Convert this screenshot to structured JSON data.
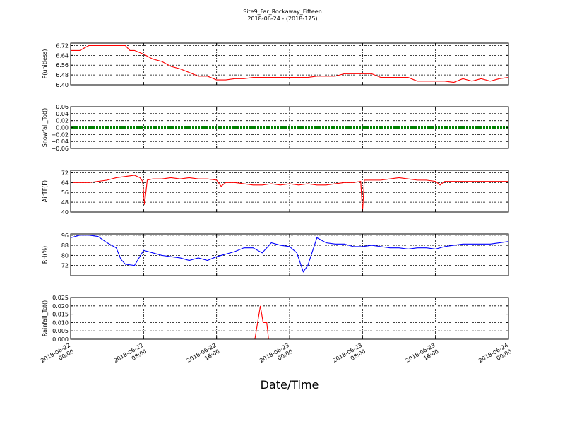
{
  "figure": {
    "title": "Site9_Far_Rockaway_Fifteen",
    "subtitle": "2018-06-24 - (2018-175)",
    "xlabel": "Date/Time"
  },
  "chart_data": [
    {
      "type": "line",
      "name": "panel-p",
      "ylabel": "P(unitless)",
      "ylim": [
        6.4,
        6.74
      ],
      "yticks": [
        "6.72",
        "6.64",
        "6.56",
        "6.48",
        "6.40"
      ],
      "ytick_values": [
        6.72,
        6.64,
        6.56,
        6.48,
        6.4
      ],
      "grid": true,
      "color": "#ff0000",
      "x": [
        0,
        1,
        2,
        3,
        4,
        5,
        6,
        6.5,
        7,
        8,
        9,
        10,
        11,
        12,
        13,
        14,
        15,
        16,
        17,
        18,
        19,
        20,
        21,
        22,
        23,
        24,
        25,
        26,
        27,
        28,
        29,
        30,
        31,
        32,
        33,
        34,
        35,
        36,
        37,
        38,
        39,
        40,
        41,
        42,
        43,
        44,
        45,
        46,
        47,
        48
      ],
      "y": [
        6.68,
        6.68,
        6.72,
        6.72,
        6.72,
        6.72,
        6.72,
        6.68,
        6.68,
        6.65,
        6.61,
        6.59,
        6.55,
        6.53,
        6.5,
        6.47,
        6.47,
        6.44,
        6.44,
        6.45,
        6.45,
        6.46,
        6.46,
        6.46,
        6.46,
        6.46,
        6.46,
        6.46,
        6.47,
        6.47,
        6.47,
        6.49,
        6.49,
        6.49,
        6.49,
        6.46,
        6.46,
        6.46,
        6.46,
        6.43,
        6.43,
        6.43,
        6.43,
        6.42,
        6.45,
        6.43,
        6.45,
        6.43,
        6.45,
        6.46
      ]
    },
    {
      "type": "line",
      "name": "panel-snowfall",
      "ylabel": "Snowfall_Tot()",
      "ylim": [
        -0.06,
        0.06
      ],
      "yticks": [
        "0.06",
        "0.04",
        "0.02",
        "0.00",
        "−0.02",
        "−0.04",
        "−0.06"
      ],
      "ytick_values": [
        0.06,
        0.04,
        0.02,
        0.0,
        -0.02,
        -0.04,
        -0.06
      ],
      "grid": true,
      "color": "#008000",
      "x": [
        0,
        48
      ],
      "y": [
        0.0,
        0.0
      ]
    },
    {
      "type": "line",
      "name": "panel-airtf",
      "ylabel": "AirTF(F)",
      "ylim": [
        40,
        74
      ],
      "yticks": [
        "72",
        "64",
        "56",
        "48",
        "40"
      ],
      "ytick_values": [
        72,
        64,
        56,
        48,
        40
      ],
      "grid": true,
      "color": "#ff0000",
      "x": [
        0,
        2,
        4,
        5,
        6,
        7,
        7.6,
        7.9,
        8.1,
        8.4,
        9,
        10,
        11,
        12,
        13,
        14,
        15,
        16,
        16.5,
        17,
        18,
        19,
        20,
        21,
        22,
        23,
        24,
        25,
        26,
        27,
        28,
        29,
        30,
        31,
        31.8,
        32.0,
        32.2,
        33,
        34,
        35,
        36,
        37,
        38,
        39,
        40,
        40.5,
        41,
        42,
        44,
        46,
        48
      ],
      "y": [
        64,
        64,
        66,
        68,
        69,
        70,
        68,
        65,
        46,
        66,
        67,
        67,
        68,
        67,
        68,
        67,
        67,
        66,
        61,
        64,
        64,
        63,
        62,
        62,
        63,
        62,
        63,
        62,
        63,
        62,
        62,
        63,
        64,
        64,
        65,
        40,
        66,
        66,
        66,
        67,
        68,
        67,
        66,
        66,
        65,
        62,
        65,
        65,
        65,
        65,
        65
      ]
    },
    {
      "type": "line",
      "name": "panel-rh",
      "ylabel": "RH(%)",
      "ylim": [
        64,
        97
      ],
      "yticks": [
        "96",
        "88",
        "80",
        "72"
      ],
      "ytick_values": [
        96,
        88,
        80,
        72
      ],
      "grid": true,
      "color": "#0000ff",
      "x": [
        0,
        1,
        2,
        3,
        4,
        5,
        5.5,
        6,
        7,
        8,
        9,
        10,
        11,
        12,
        13,
        14,
        15,
        16,
        17,
        18,
        19,
        20,
        21,
        22,
        23,
        24,
        24.8,
        25.5,
        26,
        27,
        28,
        29,
        30,
        31,
        32,
        33,
        34,
        35,
        36,
        37,
        38,
        39,
        40,
        41,
        42,
        43,
        44,
        45,
        46,
        47,
        48
      ],
      "y": [
        94,
        96,
        96,
        95,
        90,
        86,
        77,
        73,
        72,
        84,
        82,
        80,
        79,
        78,
        76,
        78,
        76,
        79,
        81,
        83,
        86,
        86,
        82,
        90,
        88,
        87,
        82,
        67,
        72,
        94,
        90,
        89,
        89,
        87,
        87,
        88,
        87,
        86,
        86,
        85,
        86,
        86,
        85,
        87,
        88,
        89,
        89,
        89,
        89,
        90,
        91
      ]
    },
    {
      "type": "line",
      "name": "panel-rainfall",
      "ylabel": "Rainfall_Tot()",
      "ylim": [
        0.0,
        0.025
      ],
      "yticks": [
        "0.025",
        "0.020",
        "0.015",
        "0.010",
        "0.005",
        "0.000"
      ],
      "ytick_values": [
        0.025,
        0.02,
        0.015,
        0.01,
        0.005,
        0.0
      ],
      "grid": true,
      "color": "#ff0000",
      "x": [
        0,
        20.2,
        20.8,
        21.1,
        21.5,
        21.7,
        48
      ],
      "y": [
        0.0,
        0.0,
        0.02,
        0.01,
        0.01,
        0.0,
        0.0
      ]
    }
  ],
  "xaxis": {
    "xlim": [
      0,
      48
    ],
    "tick_values": [
      0,
      8,
      16,
      24,
      32,
      40,
      48
    ],
    "tick_labels": [
      [
        "2018-06-22",
        "00:00"
      ],
      [
        "2018-06-22",
        "08:00"
      ],
      [
        "2018-06-22",
        "16:00"
      ],
      [
        "2018-06-23",
        "00:00"
      ],
      [
        "2018-06-23",
        "08:00"
      ],
      [
        "2018-06-23",
        "16:00"
      ],
      [
        "2018-06-24",
        "00:00"
      ]
    ]
  }
}
